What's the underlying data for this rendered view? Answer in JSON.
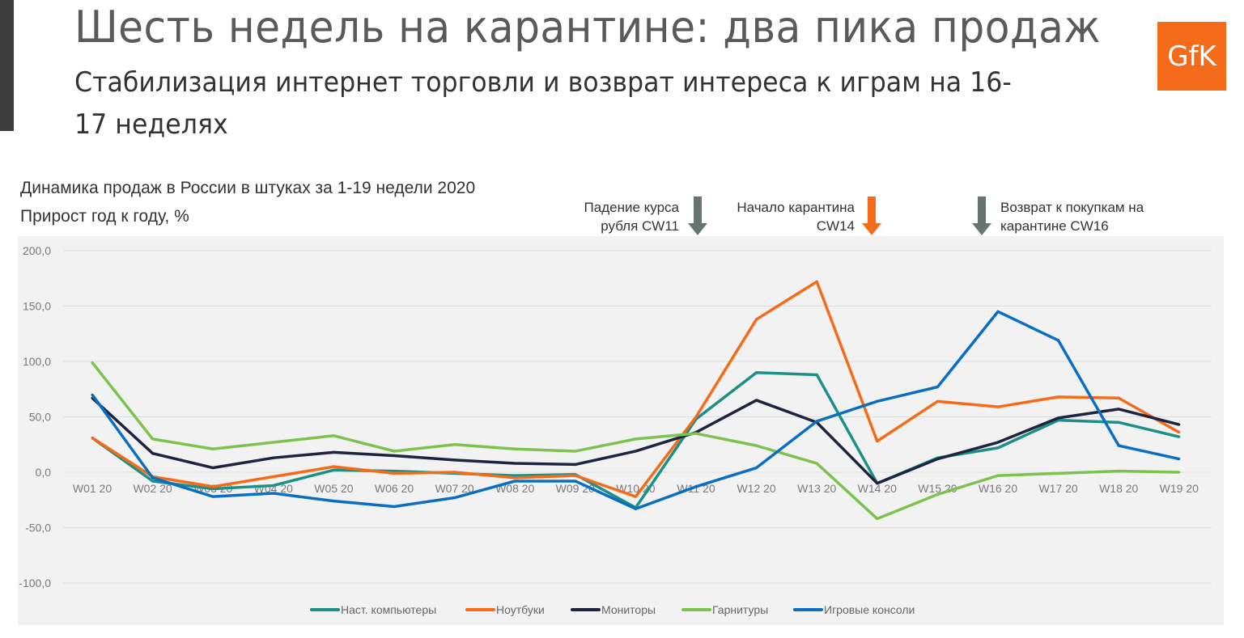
{
  "header": {
    "title": "Шесть недель на карантине: два пика продаж",
    "subtitle": "Стабилизация интернет торговли и возврат интереса к играм на 16-17 неделях",
    "logo_text": "GfK"
  },
  "captions": {
    "line1": "Динамика продаж в России в штуках за 1-19 недели 2020",
    "line2": "Прирост год к году, %"
  },
  "annotations": [
    {
      "line1": "Падение курса",
      "line2": "рубля CW11",
      "arrow_color": "#66766e",
      "icon": "arrow-down-icon"
    },
    {
      "line1": "Начало карантина",
      "line2": "CW14",
      "arrow_color": "#f46c1a",
      "icon": "arrow-down-icon"
    },
    {
      "line1": "Возврат к покупкам на",
      "line2": "карантине CW16",
      "arrow_color": "#66766e",
      "icon": "arrow-down-icon"
    }
  ],
  "chart_data": {
    "type": "line",
    "categories": [
      "W01 20",
      "W02 20",
      "W03 20",
      "W04 20",
      "W05 20",
      "W06 20",
      "W07 20",
      "W08 20",
      "W09 20",
      "W10 20",
      "W11 20",
      "W12 20",
      "W13 20",
      "W14 20",
      "W15 20",
      "W16 20",
      "W17 20",
      "W18 20",
      "W19 20"
    ],
    "ylim": [
      -100,
      200
    ],
    "yticks": [
      200,
      150,
      100,
      50,
      0,
      -50,
      -100
    ],
    "ytick_labels": [
      "200,0",
      "150,0",
      "100,0",
      "50,0",
      "0,0",
      "-50,0",
      "-100,0"
    ],
    "grid": true,
    "legend_placement": "bottom",
    "series": [
      {
        "name": "Наст. компьютеры",
        "color": "#1a9086",
        "values": [
          31,
          -8,
          -15,
          -12,
          2,
          1,
          -1,
          -3,
          -2,
          -32,
          48,
          90,
          88,
          -10,
          13,
          22,
          47,
          45,
          32
        ]
      },
      {
        "name": "Ноутбуки",
        "color": "#f46c1a",
        "values": [
          31,
          -4,
          -13,
          -4,
          5,
          -1,
          0,
          -5,
          -3,
          -22,
          50,
          138,
          172,
          28,
          64,
          59,
          68,
          67,
          36
        ]
      },
      {
        "name": "Мониторы",
        "color": "#1e2440",
        "values": [
          67,
          17,
          4,
          13,
          18,
          15,
          11,
          8,
          7,
          19,
          36,
          65,
          45,
          -10,
          12,
          27,
          49,
          57,
          43
        ]
      },
      {
        "name": "Гарнитуры",
        "color": "#7dc24e",
        "values": [
          99,
          30,
          21,
          27,
          33,
          19,
          25,
          21,
          19,
          30,
          35,
          24,
          8,
          -42,
          -20,
          -3,
          -1,
          1,
          0
        ]
      },
      {
        "name": "Игровые консоли",
        "color": "#0a6fc2",
        "values": [
          70,
          -5,
          -22,
          -19,
          -26,
          -31,
          -23,
          -8,
          -8,
          -33,
          -13,
          4,
          46,
          64,
          77,
          145,
          119,
          24,
          12
        ]
      }
    ]
  }
}
